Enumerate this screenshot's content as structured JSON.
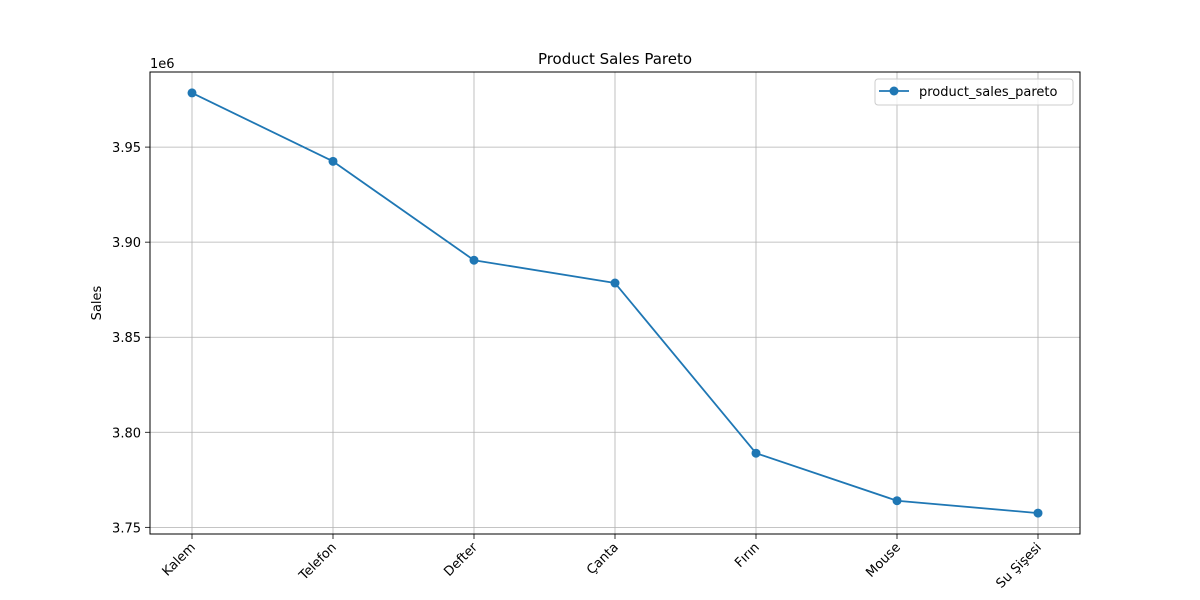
{
  "chart_data": {
    "type": "line",
    "title": "Product Sales Pareto",
    "xlabel": "",
    "ylabel": "Sales",
    "y_offset_label": "1e6",
    "categories": [
      "Kalem",
      "Telefon",
      "Defter",
      "Çanta",
      "Fırın",
      "Mouse",
      "Su Şişesi"
    ],
    "series": [
      {
        "name": "product_sales_pareto",
        "color": "#1f77b4",
        "marker": "circle",
        "values": [
          3978500,
          3942500,
          3890500,
          3878500,
          3789000,
          3764000,
          3757500
        ]
      }
    ],
    "y_ticks": [
      3750000,
      3800000,
      3850000,
      3900000,
      3950000
    ],
    "y_tick_labels": [
      "3.75",
      "3.80",
      "3.85",
      "3.90",
      "3.95"
    ],
    "ylim": [
      3746500,
      3989500
    ],
    "grid": true,
    "legend_position": "top-right",
    "grid_color": "#b0b0b0"
  }
}
